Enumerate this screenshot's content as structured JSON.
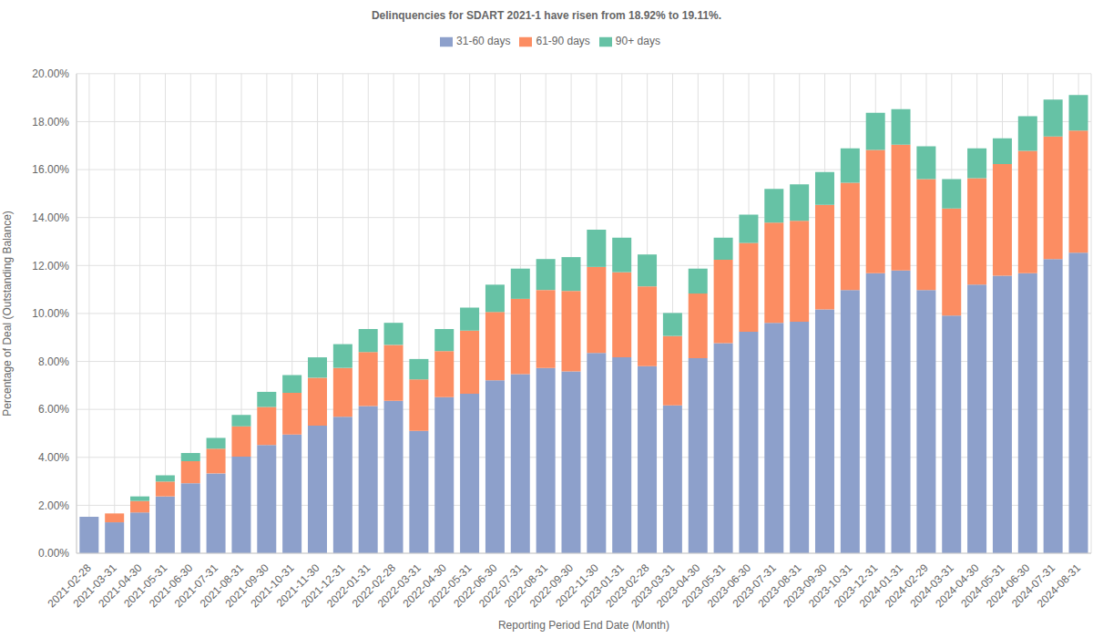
{
  "chart_data": {
    "type": "bar",
    "title": "Delinquencies for SDART 2021-1 have risen from 18.92% to 19.11%.",
    "x_label": "Reporting Period End Date (Month)",
    "y_label": "Percentage of Deal (Outstanding Balance)",
    "categories": [
      "2021-02-28",
      "2021-03-31",
      "2021-04-30",
      "2021-05-31",
      "2021-06-30",
      "2021-07-31",
      "2021-08-31",
      "2021-09-30",
      "2021-10-31",
      "2021-11-30",
      "2021-12-31",
      "2022-01-31",
      "2022-02-28",
      "2022-03-31",
      "2022-04-30",
      "2022-05-31",
      "2022-06-30",
      "2022-07-31",
      "2022-08-31",
      "2022-09-30",
      "2022-11-30",
      "2023-01-31",
      "2023-02-28",
      "2023-03-31",
      "2023-04-30",
      "2023-05-31",
      "2023-06-30",
      "2023-07-31",
      "2023-08-31",
      "2023-09-30",
      "2023-10-31",
      "2023-12-31",
      "2024-01-31",
      "2024-02-29",
      "2024-03-31",
      "2024-04-30",
      "2024-05-31",
      "2024-06-30",
      "2024-07-31",
      "2024-08-31"
    ],
    "series": [
      {
        "name": "31-60 days",
        "color": "#8da0cb",
        "values": [
          1.52,
          1.29,
          1.7,
          2.37,
          2.92,
          3.33,
          4.03,
          4.51,
          4.95,
          5.32,
          5.69,
          6.14,
          6.36,
          5.1,
          6.51,
          6.65,
          7.21,
          7.47,
          7.73,
          7.58,
          8.35,
          8.17,
          7.8,
          6.17,
          8.13,
          8.76,
          9.24,
          9.61,
          9.65,
          10.17,
          10.98,
          11.68,
          11.79,
          10.98,
          9.91,
          11.2,
          11.57,
          11.68,
          12.27,
          12.53
        ]
      },
      {
        "name": "61-90 days",
        "color": "#fc8d62",
        "values": [
          0,
          0.37,
          0.48,
          0.62,
          0.92,
          1.03,
          1.26,
          1.59,
          1.74,
          2.0,
          2.04,
          2.25,
          2.33,
          2.15,
          1.92,
          2.63,
          2.85,
          3.14,
          3.25,
          3.36,
          3.59,
          3.55,
          3.33,
          2.89,
          2.7,
          3.48,
          3.7,
          4.18,
          4.21,
          4.36,
          4.47,
          5.14,
          5.25,
          4.62,
          4.47,
          4.44,
          4.66,
          5.1,
          5.11,
          5.1
        ]
      },
      {
        "name": "90+ days",
        "color": "#66c2a5",
        "values": [
          0,
          0,
          0.19,
          0.26,
          0.34,
          0.45,
          0.48,
          0.63,
          0.74,
          0.85,
          0.99,
          0.96,
          0.92,
          0.85,
          0.92,
          0.96,
          1.14,
          1.26,
          1.29,
          1.41,
          1.55,
          1.44,
          1.33,
          0.96,
          1.04,
          0.92,
          1.18,
          1.4,
          1.52,
          1.37,
          1.44,
          1.55,
          1.48,
          1.37,
          1.22,
          1.25,
          1.07,
          1.45,
          1.54,
          1.48
        ]
      }
    ],
    "ylim": [
      0,
      20
    ],
    "yticks": [
      {
        "value": 0,
        "label": "0.00%"
      },
      {
        "value": 2,
        "label": "2.00%"
      },
      {
        "value": 4,
        "label": "4.00%"
      },
      {
        "value": 6,
        "label": "6.00%"
      },
      {
        "value": 8,
        "label": "8.00%"
      },
      {
        "value": 10,
        "label": "10.00%"
      },
      {
        "value": 12,
        "label": "12.00%"
      },
      {
        "value": 14,
        "label": "14.00%"
      },
      {
        "value": 16,
        "label": "16.00%"
      },
      {
        "value": 18,
        "label": "18.00%"
      },
      {
        "value": 20,
        "label": "20.00%"
      }
    ],
    "stacked": true,
    "grid": true,
    "legend": "top"
  }
}
